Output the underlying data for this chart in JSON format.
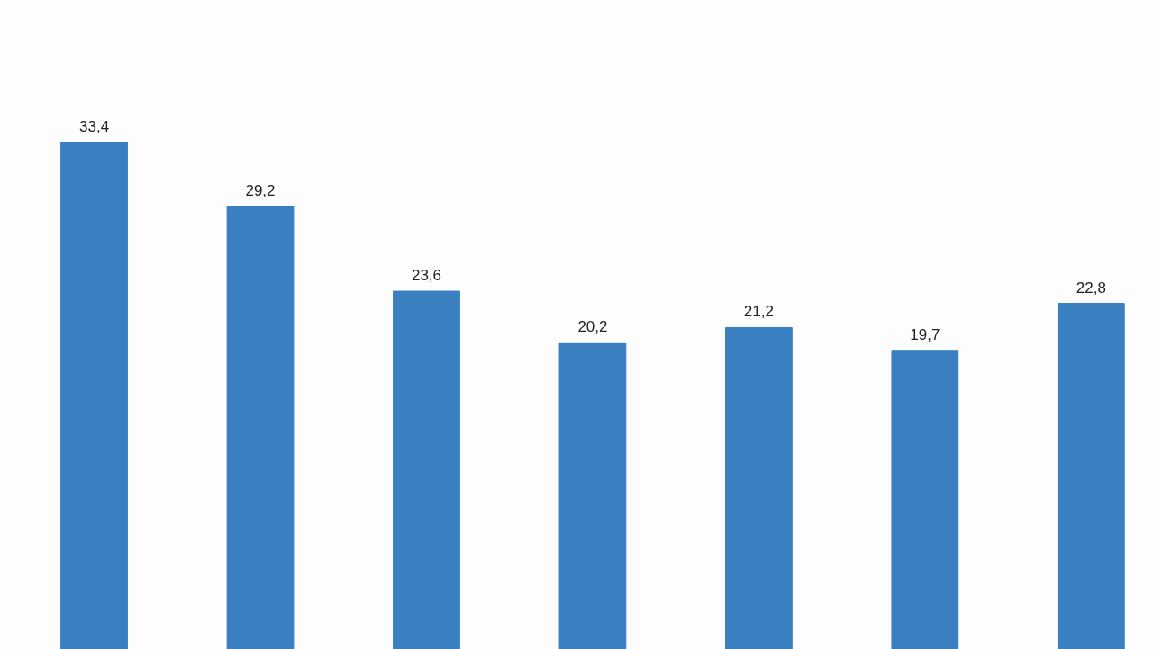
{
  "chart_data": {
    "type": "bar",
    "categories": [
      null,
      null,
      null,
      null,
      null,
      null,
      null
    ],
    "values": [
      33.4,
      29.2,
      23.6,
      20.2,
      21.2,
      19.7,
      22.8
    ],
    "value_labels": [
      "33,4",
      "29,2",
      "23,6",
      "20,2",
      "21,2",
      "19,7",
      "22,8"
    ],
    "color": "#3a80c0"
  }
}
